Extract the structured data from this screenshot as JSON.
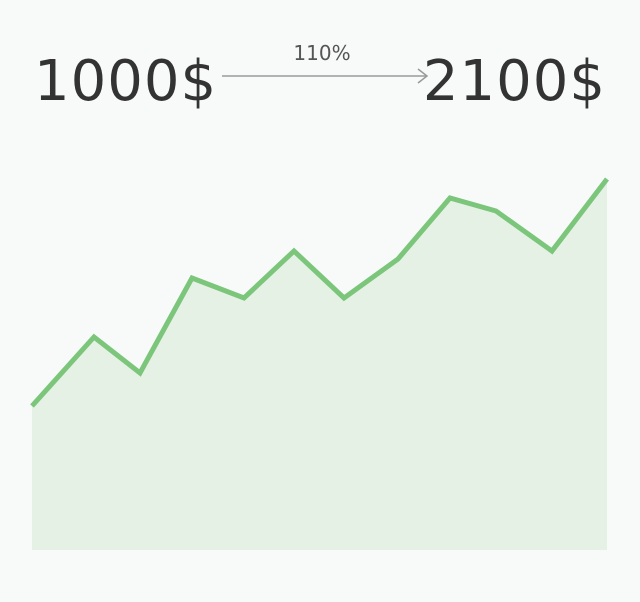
{
  "start": "1000$",
  "rate": "110%",
  "end": "2100$"
}
